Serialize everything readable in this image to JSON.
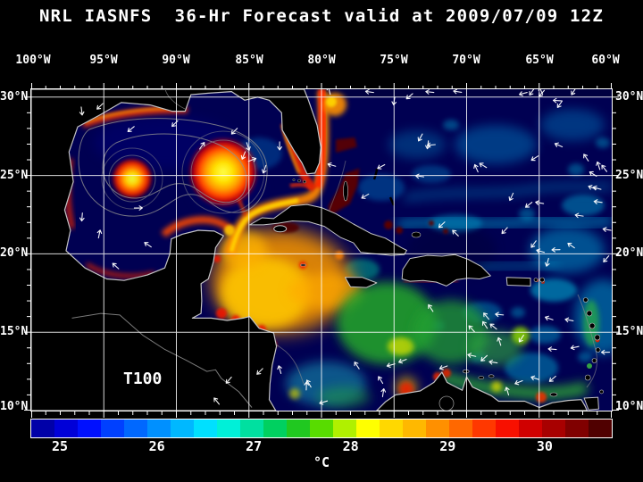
{
  "title": "NRL IASNFS  36-Hr Forecast valid at 2009/07/09 12Z",
  "axes": {
    "lon_labels": [
      "100°W",
      "95°W",
      "90°W",
      "85°W",
      "80°W",
      "75°W",
      "70°W",
      "65°W",
      "60°W"
    ],
    "lat_labels_left": [
      "30°N",
      "25°N",
      "20°N",
      "15°N",
      "10°N"
    ],
    "lat_labels_right": [
      "30°N",
      "25°N",
      "20°N",
      "15°N",
      "10°N"
    ]
  },
  "map": {
    "overlay_label": "T100"
  },
  "colorbar": {
    "tick_labels": [
      "25",
      "26",
      "27",
      "28",
      "29",
      "30"
    ],
    "unit": "°C",
    "min_value": 25,
    "max_value": 30,
    "segment_colors": [
      "#0000a8",
      "#0000d8",
      "#0010ff",
      "#0040ff",
      "#0068ff",
      "#0090ff",
      "#00b8ff",
      "#00e0ff",
      "#00f0d8",
      "#00e0a0",
      "#00d060",
      "#20c820",
      "#58dc00",
      "#b0f000",
      "#ffff00",
      "#ffd800",
      "#ffb800",
      "#ff9000",
      "#ff6800",
      "#ff3800",
      "#f81000",
      "#d00000",
      "#a80000",
      "#800000",
      "#500000"
    ]
  },
  "colors": {
    "background": "#000000",
    "ocean_deep": "#000052",
    "land": "#000000",
    "coastline": "#c4c4c4",
    "grid": "#ffffff",
    "arrows": "#ffffff"
  }
}
